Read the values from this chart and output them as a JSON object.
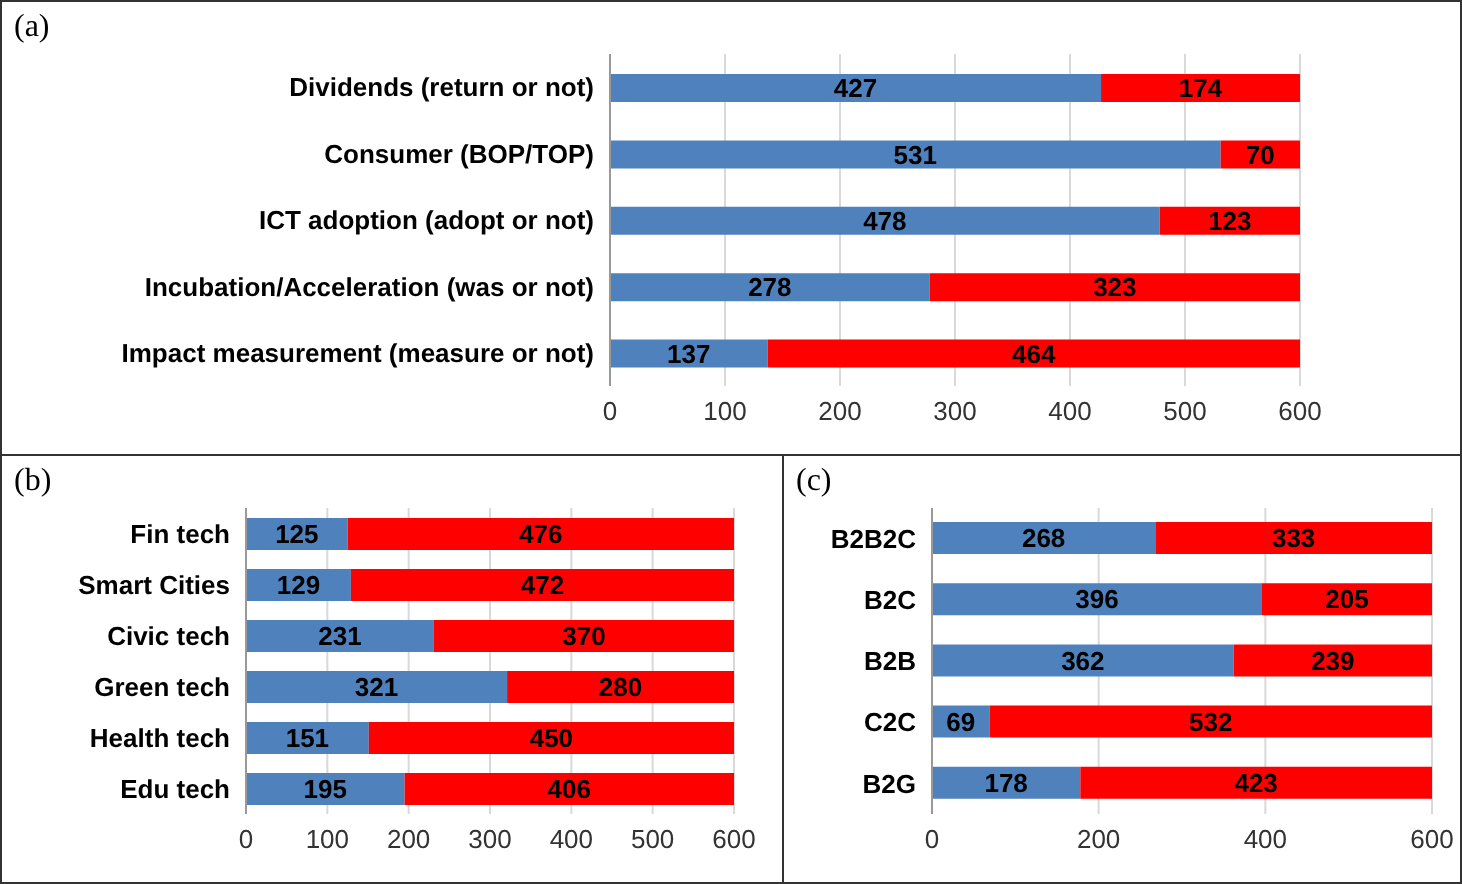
{
  "chart_data": [
    {
      "type": "bar",
      "title": "(a)",
      "orientation": "horizontal",
      "stacked": true,
      "grid": "x",
      "data_labels": true,
      "categories": [
        "Dividends (return or not)",
        "Consumer (BOP/TOP)",
        "ICT adoption (adopt or not)",
        "Incubation/Acceleration (was or not)",
        "Impact measurement (measure or not)"
      ],
      "series": [
        {
          "color": "#4f81bd",
          "values": [
            427,
            531,
            478,
            278,
            137
          ]
        },
        {
          "color": "#ff0000",
          "values": [
            174,
            70,
            123,
            323,
            464
          ]
        }
      ],
      "xlim": [
        0,
        600
      ],
      "xticks": [
        0,
        100,
        200,
        300,
        400,
        500,
        600
      ]
    },
    {
      "type": "bar",
      "title": "(b)",
      "orientation": "horizontal",
      "stacked": true,
      "grid": "x",
      "data_labels": true,
      "categories": [
        "Fin tech",
        "Smart Cities",
        "Civic tech",
        "Green tech",
        "Health tech",
        "Edu tech"
      ],
      "series": [
        {
          "color": "#4f81bd",
          "values": [
            125,
            129,
            231,
            321,
            151,
            195
          ]
        },
        {
          "color": "#ff0000",
          "values": [
            476,
            472,
            370,
            280,
            450,
            406
          ]
        }
      ],
      "xlim": [
        0,
        600
      ],
      "xticks": [
        0,
        100,
        200,
        300,
        400,
        500,
        600
      ]
    },
    {
      "type": "bar",
      "title": "(c)",
      "orientation": "horizontal",
      "stacked": true,
      "grid": "x",
      "data_labels": true,
      "categories": [
        "B2B2C",
        "B2C",
        "B2B",
        "C2C",
        "B2G"
      ],
      "series": [
        {
          "color": "#4f81bd",
          "values": [
            268,
            396,
            362,
            69,
            178
          ]
        },
        {
          "color": "#ff0000",
          "values": [
            333,
            205,
            239,
            532,
            423
          ]
        }
      ],
      "xlim": [
        0,
        600
      ],
      "xticks": [
        0,
        200,
        400,
        600
      ]
    }
  ]
}
